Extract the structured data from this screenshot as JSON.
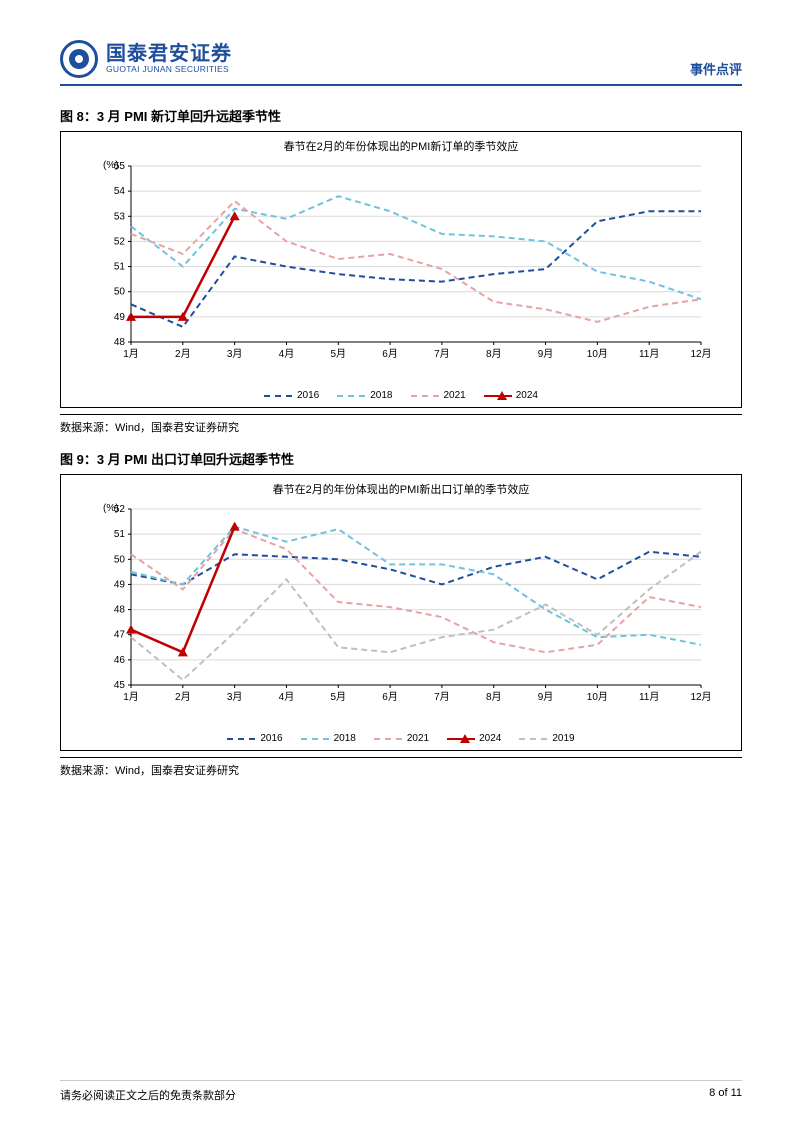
{
  "header": {
    "logo_cn": "国泰君安证券",
    "logo_en": "GUOTAI JUNAN SECURITIES",
    "doc_type": "事件点评"
  },
  "chart8": {
    "title": "图 8：3 月 PMI 新订单回升远超季节性",
    "inner_title": "春节在2月的年份体现出的PMI新订单的季节效应",
    "y_unit": "(%)",
    "type": "line",
    "months": [
      "1月",
      "2月",
      "3月",
      "4月",
      "5月",
      "6月",
      "7月",
      "8月",
      "9月",
      "10月",
      "11月",
      "12月"
    ],
    "ylim": [
      48,
      55
    ],
    "ytick_step": 1,
    "background_color": "#ffffff",
    "grid_color": "#d9d9d9",
    "axis_color": "#000000",
    "title_fontsize": 13,
    "label_fontsize": 10,
    "series": [
      {
        "name": "2016",
        "color": "#1f4e9c",
        "dash": "6,4",
        "width": 2,
        "marker": "none",
        "values": [
          49.5,
          48.6,
          51.4,
          51.0,
          50.7,
          50.5,
          50.4,
          50.7,
          50.9,
          52.8,
          53.2,
          53.2
        ]
      },
      {
        "name": "2018",
        "color": "#6fc3df",
        "dash": "6,4",
        "width": 2,
        "marker": "none",
        "values": [
          52.6,
          51.0,
          53.3,
          52.9,
          53.8,
          53.2,
          52.3,
          52.2,
          52.0,
          50.8,
          50.4,
          49.7
        ]
      },
      {
        "name": "2021",
        "color": "#e6a3a3",
        "dash": "6,4",
        "width": 2,
        "marker": "none",
        "values": [
          52.3,
          51.5,
          53.6,
          52.0,
          51.3,
          51.5,
          50.9,
          49.6,
          49.3,
          48.8,
          49.4,
          49.7
        ]
      },
      {
        "name": "2024",
        "color": "#c00000",
        "dash": "none",
        "width": 2.5,
        "marker": "triangle",
        "values": [
          49.0,
          49.0,
          53.0,
          null,
          null,
          null,
          null,
          null,
          null,
          null,
          null,
          null
        ]
      }
    ],
    "legend": [
      {
        "label": "2016",
        "color": "#1f4e9c",
        "dash": "dashed",
        "marker": "none"
      },
      {
        "label": "2018",
        "color": "#6fc3df",
        "dash": "dashed",
        "marker": "none"
      },
      {
        "label": "2021",
        "color": "#e6a3a3",
        "dash": "dashed",
        "marker": "none"
      },
      {
        "label": "2024",
        "color": "#c00000",
        "dash": "solid",
        "marker": "triangle"
      }
    ],
    "source": "数据来源：Wind，国泰君安证券研究"
  },
  "chart9": {
    "title": "图 9：3 月 PMI 出口订单回升远超季节性",
    "inner_title": "春节在2月的年份体现出的PMI新出口订单的季节效应",
    "y_unit": "(%)",
    "type": "line",
    "months": [
      "1月",
      "2月",
      "3月",
      "4月",
      "5月",
      "6月",
      "7月",
      "8月",
      "9月",
      "10月",
      "11月",
      "12月"
    ],
    "ylim": [
      45,
      52
    ],
    "ytick_step": 1,
    "background_color": "#ffffff",
    "grid_color": "#d9d9d9",
    "axis_color": "#000000",
    "title_fontsize": 13,
    "label_fontsize": 10,
    "series": [
      {
        "name": "2016",
        "color": "#1f4e9c",
        "dash": "6,4",
        "width": 2,
        "marker": "none",
        "values": [
          49.4,
          49.0,
          50.2,
          50.1,
          50.0,
          49.6,
          49.0,
          49.7,
          50.1,
          49.2,
          50.3,
          50.1
        ]
      },
      {
        "name": "2018",
        "color": "#6fc3df",
        "dash": "6,4",
        "width": 2,
        "marker": "none",
        "values": [
          49.5,
          49.0,
          51.3,
          50.7,
          51.2,
          49.8,
          49.8,
          49.4,
          48.0,
          46.9,
          47.0,
          46.6
        ]
      },
      {
        "name": "2021",
        "color": "#e6a3a3",
        "dash": "6,4",
        "width": 2,
        "marker": "none",
        "values": [
          50.2,
          48.8,
          51.2,
          50.4,
          48.3,
          48.1,
          47.7,
          46.7,
          46.3,
          46.6,
          48.5,
          48.1
        ]
      },
      {
        "name": "2024",
        "color": "#c00000",
        "dash": "none",
        "width": 2.5,
        "marker": "triangle",
        "values": [
          47.2,
          46.3,
          51.3,
          null,
          null,
          null,
          null,
          null,
          null,
          null,
          null,
          null
        ]
      },
      {
        "name": "2019",
        "color": "#bfbfbf",
        "dash": "6,4",
        "width": 2,
        "marker": "none",
        "values": [
          46.9,
          45.2,
          47.1,
          49.2,
          46.5,
          46.3,
          46.9,
          47.2,
          48.2,
          47.0,
          48.8,
          50.3
        ]
      }
    ],
    "legend": [
      {
        "label": "2016",
        "color": "#1f4e9c",
        "dash": "dashed",
        "marker": "none"
      },
      {
        "label": "2018",
        "color": "#6fc3df",
        "dash": "dashed",
        "marker": "none"
      },
      {
        "label": "2021",
        "color": "#e6a3a3",
        "dash": "dashed",
        "marker": "none"
      },
      {
        "label": "2024",
        "color": "#c00000",
        "dash": "solid",
        "marker": "triangle"
      },
      {
        "label": "2019",
        "color": "#bfbfbf",
        "dash": "dashed",
        "marker": "none"
      }
    ],
    "source": "数据来源：Wind，国泰君安证券研究"
  },
  "footer": {
    "disclaimer": "请务必阅读正文之后的免责条款部分",
    "page": "8 of 11"
  }
}
